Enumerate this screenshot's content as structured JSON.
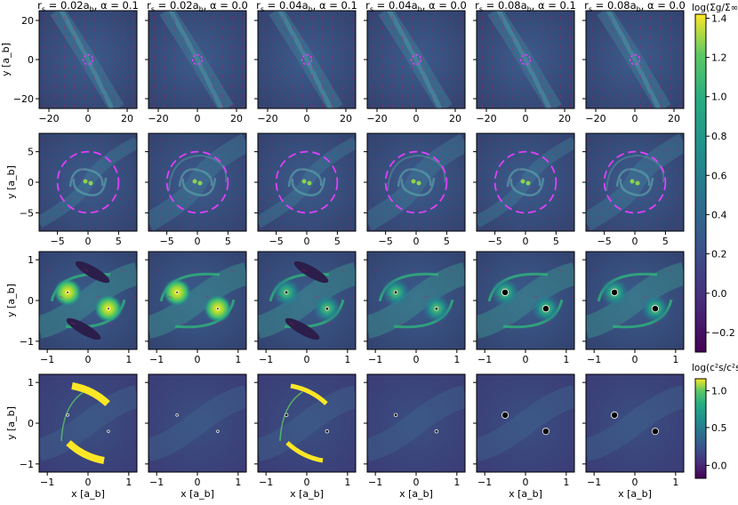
{
  "figure": {
    "panel_columns": [
      {
        "label_prefix": "r",
        "label_sub": "s",
        "label_value": " = 0.02a",
        "label_sub2": "b",
        "label_alpha": ", α = 0.1"
      },
      {
        "label_prefix": "r",
        "label_sub": "s",
        "label_value": " = 0.02a",
        "label_sub2": "b",
        "label_alpha": ", α = 0.0"
      },
      {
        "label_prefix": "r",
        "label_sub": "s",
        "label_value": " = 0.04a",
        "label_sub2": "b",
        "label_alpha": ", α = 0.1"
      },
      {
        "label_prefix": "r",
        "label_sub": "s",
        "label_value": " = 0.04a",
        "label_sub2": "b",
        "label_alpha": ", α = 0.0"
      },
      {
        "label_prefix": "r",
        "label_sub": "s",
        "label_value": " = 0.08a",
        "label_sub2": "b",
        "label_alpha": ", α = 0.1"
      },
      {
        "label_prefix": "r",
        "label_sub": "s",
        "label_value": " = 0.08a",
        "label_sub2": "b",
        "label_alpha": ", α = 0.0"
      }
    ],
    "ylabel": "y [a_b]",
    "xlabel": "x [a_b]",
    "colorbar_density": {
      "label": "log(Σg/Σ∞)",
      "ticks": [
        "1.4",
        "1.2",
        "1.0",
        "0.8",
        "0.6",
        "0.4",
        "0.2",
        "0.0",
        "−0.2"
      ],
      "colormap": "viridis"
    },
    "colorbar_temperature": {
      "label": "log(c²s/c²s,∞)",
      "ticks": [
        "1.0",
        "0.5",
        "0.0"
      ],
      "colormap": "viridis"
    },
    "tick_labels_large": [
      "−20",
      "0",
      "20"
    ],
    "tick_labels_medium": [
      "−5",
      "0",
      "5"
    ],
    "tick_labels_small": [
      "−1",
      "0",
      "1"
    ]
  },
  "chart_data": [
    {
      "type": "heatmap",
      "row": "density_large_scale",
      "xlim": [
        -25,
        25
      ],
      "ylim": [
        -25,
        25
      ],
      "xticks": [
        -20,
        0,
        20
      ],
      "yticks": [
        -20,
        0,
        20
      ],
      "panels": [
        "r_s = 0.02a_b, α = 0.1",
        "r_s = 0.02a_b, α = 0.0",
        "r_s = 0.04a_b, α = 0.1",
        "r_s = 0.04a_b, α = 0.0",
        "r_s = 0.08a_b, α = 0.1",
        "r_s = 0.08a_b, α = 0.0"
      ]
    },
    {
      "type": "heatmap",
      "row": "density_medium_scale",
      "xlim": [
        -8,
        8
      ],
      "ylim": [
        -8,
        8
      ],
      "xticks": [
        -5,
        0,
        5
      ],
      "yticks": [
        -5,
        0,
        5
      ],
      "dashed_circle_radius": 5
    },
    {
      "type": "heatmap",
      "row": "density_binary_scale",
      "xlim": [
        -1.2,
        1.2
      ],
      "ylim": [
        -1.2,
        1.2
      ],
      "xticks": [
        -1,
        0,
        1
      ],
      "yticks": [
        -1,
        0,
        1
      ],
      "binary_positions": [
        [
          -0.5,
          0.2
        ],
        [
          0.5,
          -0.2
        ]
      ],
      "sink_radius": [
        0.02,
        0.02,
        0.04,
        0.04,
        0.08,
        0.08
      ]
    },
    {
      "type": "heatmap",
      "row": "temperature_binary_scale",
      "xlim": [
        -1.2,
        1.2
      ],
      "ylim": [
        -1.2,
        1.2
      ],
      "xticks": [
        -1,
        0,
        1
      ],
      "yticks": [
        -1,
        0,
        1
      ],
      "binary_positions": [
        [
          -0.5,
          0.2
        ],
        [
          0.5,
          -0.2
        ]
      ],
      "sink_radius": [
        0.02,
        0.02,
        0.04,
        0.04,
        0.08,
        0.08
      ]
    }
  ]
}
